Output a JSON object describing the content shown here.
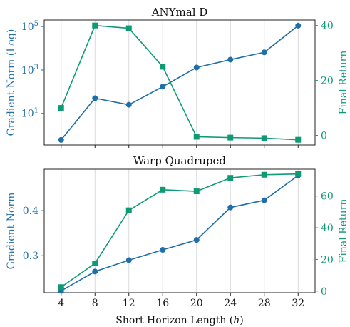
{
  "figure": {
    "xlabel": "Short Horizon Length (h)",
    "x_tick_labels": [
      "4",
      "8",
      "12",
      "16",
      "20",
      "24",
      "28",
      "32"
    ]
  },
  "colors": {
    "gradient": "#1f6fa8",
    "return": "#0f9a76",
    "grid": "#d9d9d9",
    "axis": "#222222"
  },
  "chart_data": [
    {
      "type": "line",
      "title": "ANYmal D",
      "x": [
        4,
        8,
        12,
        16,
        20,
        24,
        28,
        32
      ],
      "grid": "vertical",
      "left_axis": {
        "label": "Gradient Norm (Log)",
        "scale": "log",
        "ticks": [
          10,
          1000,
          100000
        ],
        "tick_labels": [
          "10^1",
          "10^3",
          "10^5"
        ],
        "range": [
          0.35,
          200000
        ]
      },
      "right_axis": {
        "label": "Final Return",
        "scale": "linear",
        "ticks": [
          0,
          20,
          40
        ],
        "tick_labels": [
          "0",
          "20",
          "40"
        ],
        "range": [
          -3.5,
          42
        ]
      },
      "series": [
        {
          "axis": "left",
          "marker": "circle",
          "color": "#1f6fa8",
          "values": [
            0.6,
            50,
            25,
            170,
            1300,
            3000,
            6500,
            110000
          ]
        },
        {
          "axis": "right",
          "marker": "square",
          "color": "#0f9a76",
          "values": [
            10,
            40,
            39,
            25,
            -0.5,
            -0.8,
            -1.0,
            -1.6
          ]
        }
      ]
    },
    {
      "type": "line",
      "title": "Warp Quadruped",
      "x": [
        4,
        8,
        12,
        16,
        20,
        24,
        28,
        32
      ],
      "grid": "vertical",
      "left_axis": {
        "label": "Gradient Norm",
        "scale": "linear",
        "ticks": [
          0.3,
          0.4
        ],
        "tick_labels": [
          "0.3",
          "0.4"
        ],
        "range": [
          0.218,
          0.492
        ]
      },
      "right_axis": {
        "label": "Final Return",
        "scale": "linear",
        "ticks": [
          0,
          20,
          40,
          60
        ],
        "tick_labels": [
          "0",
          "20",
          "40",
          "60"
        ],
        "range": [
          -1,
          77
        ]
      },
      "series": [
        {
          "axis": "left",
          "marker": "circle",
          "color": "#1f6fa8",
          "values": [
            0.222,
            0.265,
            0.29,
            0.313,
            0.335,
            0.407,
            0.423,
            0.478
          ]
        },
        {
          "axis": "right",
          "marker": "square",
          "color": "#0f9a76",
          "values": [
            2.5,
            17.5,
            51,
            64,
            63,
            71.5,
            73.5,
            74
          ]
        }
      ]
    }
  ]
}
